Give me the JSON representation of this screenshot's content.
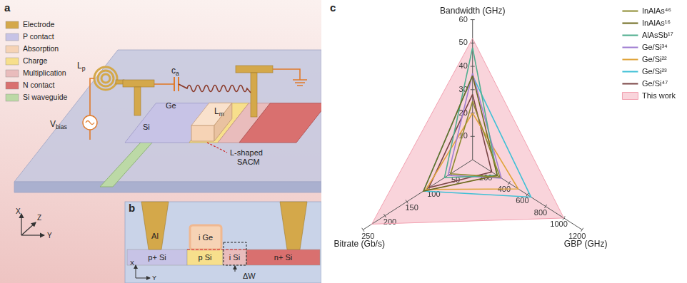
{
  "panel_labels": {
    "a": "a",
    "b": "b",
    "c": "c"
  },
  "diagram": {
    "legend": [
      {
        "label": "Electrode",
        "color": "#d4a84a"
      },
      {
        "label": "P contact",
        "color": "#c7c3e6"
      },
      {
        "label": "Absorption",
        "color": "#f6d3b5"
      },
      {
        "label": "Charge",
        "color": "#f7df8c"
      },
      {
        "label": "Multiplication",
        "color": "#e9bcbc"
      },
      {
        "label": "N contact",
        "color": "#d9706f"
      },
      {
        "label": "Si waveguide",
        "color": "#bcd9a6"
      }
    ],
    "device_labels": {
      "inductor_p": {
        "text": "L",
        "sub": "p"
      },
      "capacitor": {
        "text": "c",
        "sub": "a"
      },
      "inductor_m": {
        "text": "L",
        "sub": "m"
      },
      "source": {
        "text": "V",
        "sub": "bias"
      },
      "ge": "Ge",
      "si": "Si",
      "sacm": [
        "L-shaped",
        "SACM"
      ]
    },
    "axes_a": [
      "X",
      "Y",
      "Z"
    ],
    "cross_section": {
      "electrode": "Al",
      "absorber": "i Ge",
      "layers": [
        "p+ Si",
        "p Si",
        "i Si",
        "n+ Si"
      ],
      "width": "ΔW",
      "axes": [
        "X",
        "Y"
      ]
    }
  },
  "chart_data": {
    "type": "radar",
    "axes": [
      {
        "name": "Bandwidth (GHz)",
        "lim": [
          0,
          60
        ],
        "ticks": [
          10,
          20,
          30,
          40,
          50,
          60
        ]
      },
      {
        "name": "GBP (GHz)",
        "lim": [
          0,
          1200
        ],
        "ticks": [
          200,
          400,
          600,
          800,
          1000,
          1200
        ]
      },
      {
        "name": "Bitrate (Gb/s)",
        "lim": [
          0,
          250
        ],
        "ticks": [
          50,
          100,
          150,
          200,
          250
        ]
      }
    ],
    "series": [
      {
        "name": "InAlAs⁴⁶",
        "color": "#8c8a2e",
        "type": "line",
        "values": [
          25,
          300,
          50
        ]
      },
      {
        "name": "InAlAs¹⁶",
        "color": "#6e6a1e",
        "type": "line",
        "values": [
          36,
          270,
          112
        ]
      },
      {
        "name": "AlAsSb¹⁷",
        "color": "#4fae8e",
        "type": "line",
        "values": [
          48,
          270,
          64
        ]
      },
      {
        "name": "Ge/Si³⁴",
        "color": "#a07fd2",
        "type": "line",
        "values": [
          37,
          315,
          56
        ]
      },
      {
        "name": "Ge/Si²²",
        "color": "#e0a43a",
        "type": "line",
        "values": [
          20,
          500,
          106
        ]
      },
      {
        "name": "Ge/Si²³",
        "color": "#3fc0d6",
        "type": "line",
        "values": [
          36,
          640,
          112
        ]
      },
      {
        "name": "Ge/Si⁴⁷",
        "color": "#7a4545",
        "type": "line",
        "values": [
          28,
          210,
          100
        ]
      },
      {
        "name": "This work",
        "color": "#f2a0b0",
        "type": "area",
        "values": [
          52,
          1000,
          230
        ]
      }
    ],
    "legend": "top-right",
    "grid": false
  }
}
